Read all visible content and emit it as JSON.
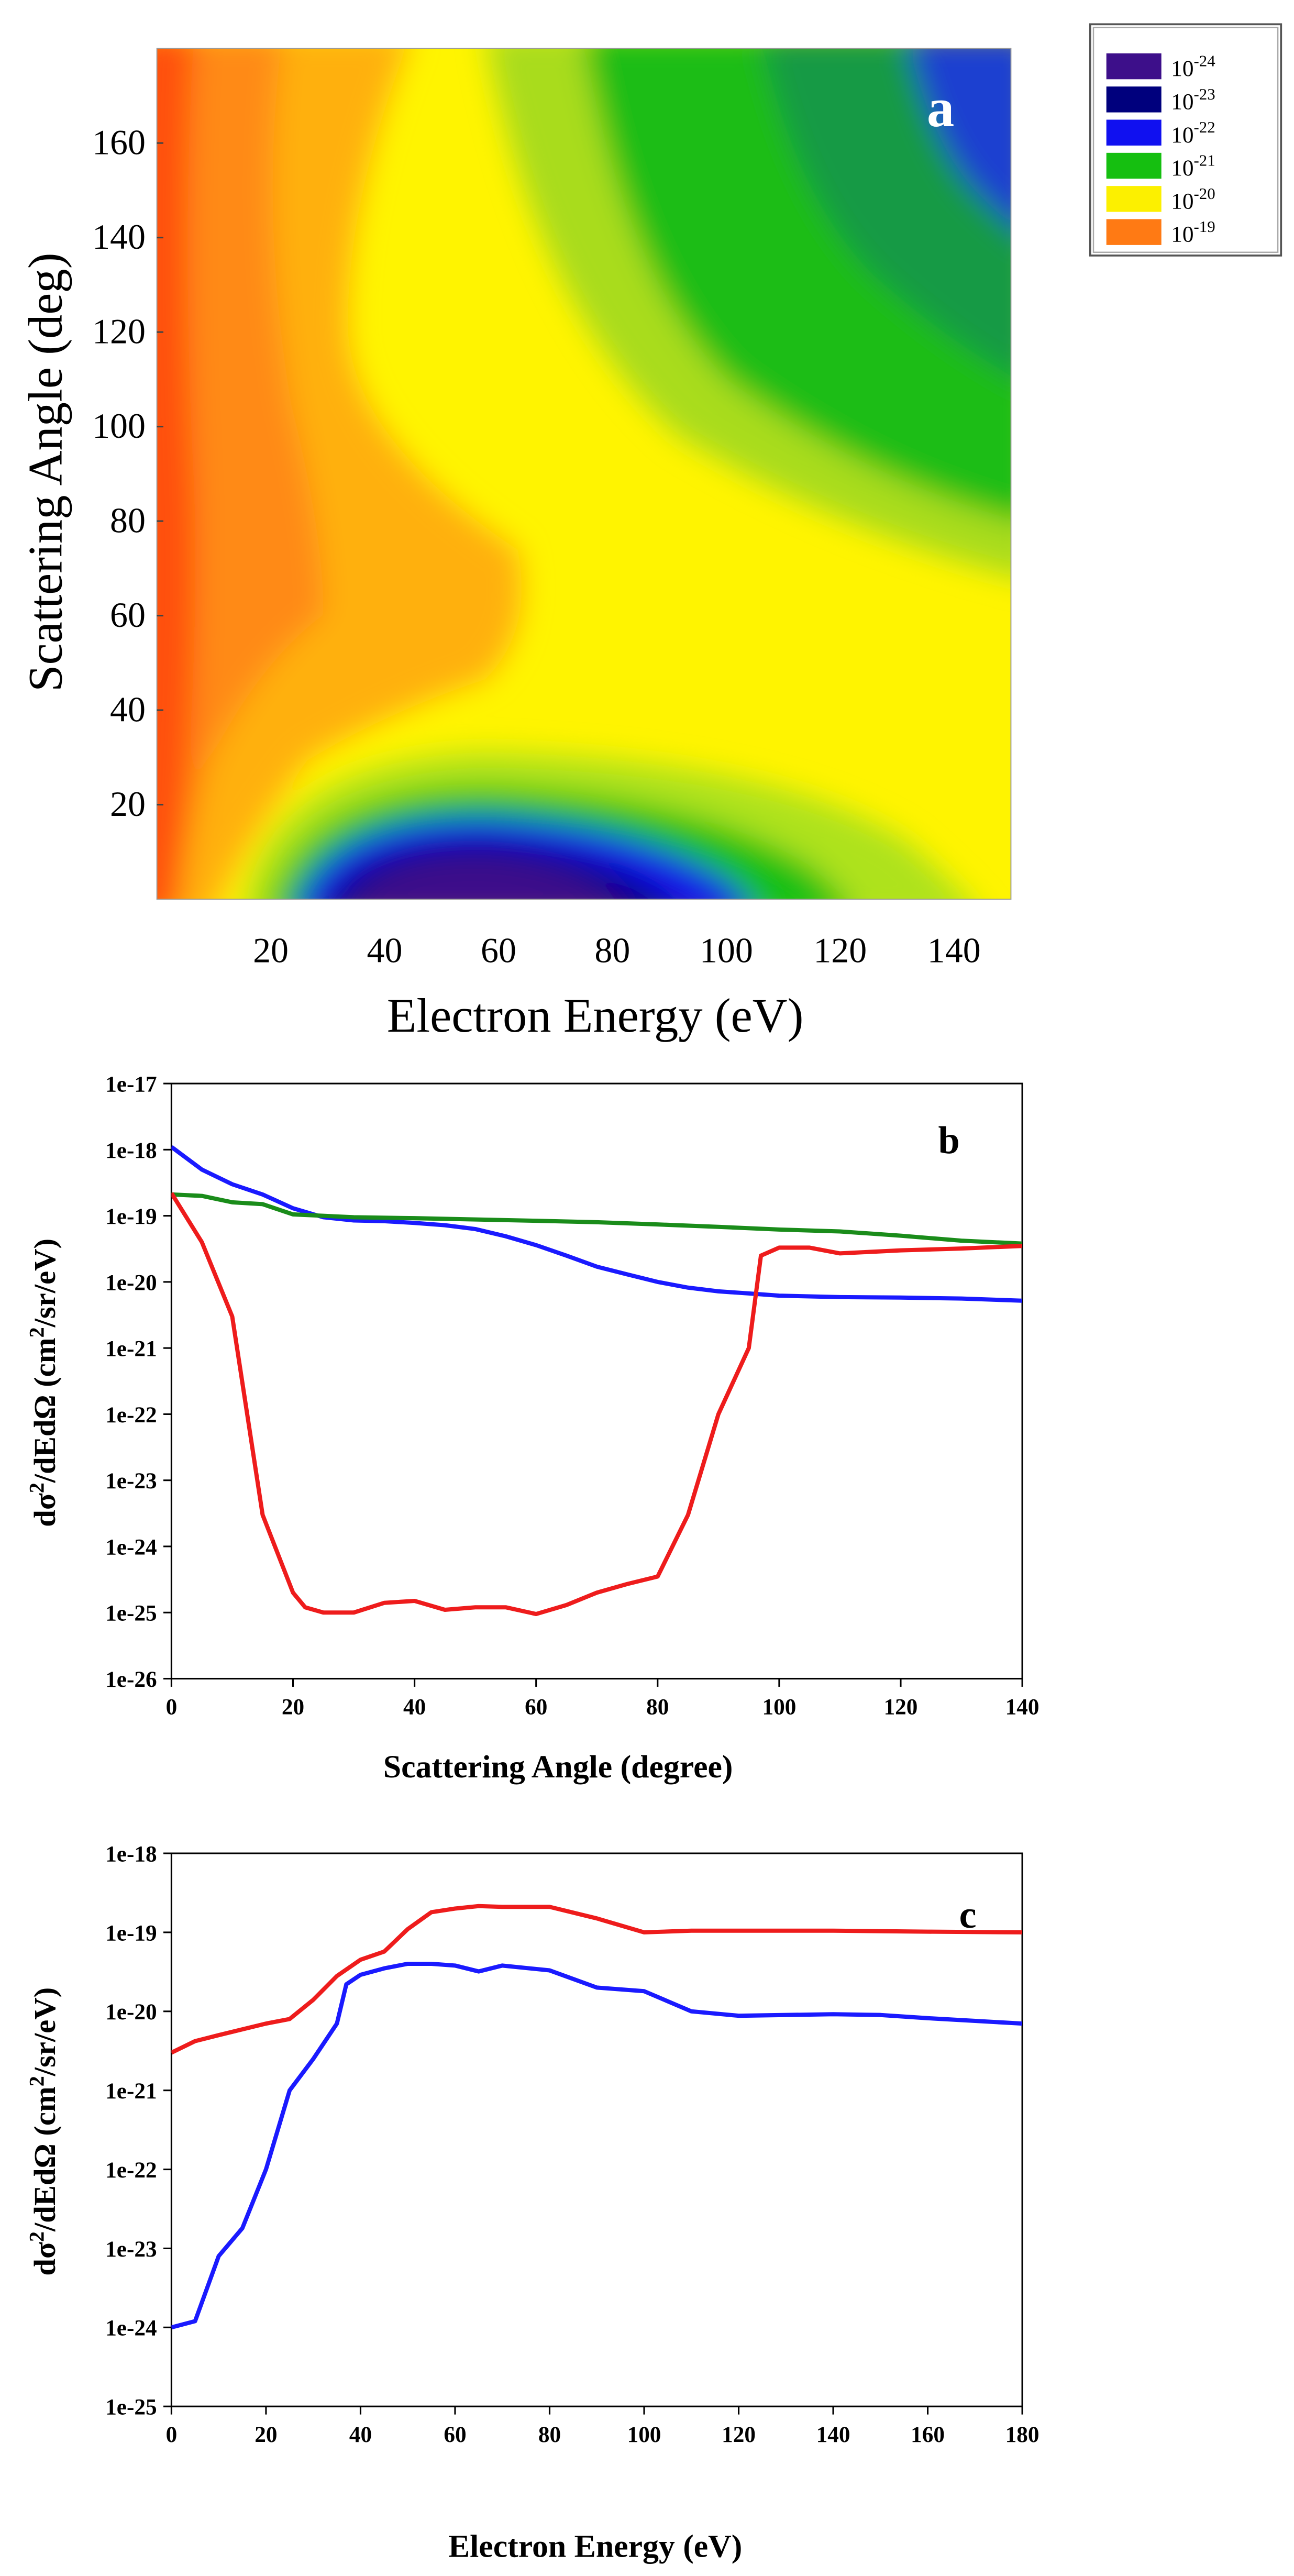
{
  "chart_data": [
    {
      "type": "heatmap",
      "panel_label": "a",
      "xlabel": "Electron Energy (eV)",
      "ylabel": "Scattering Angle (deg)",
      "xlim": [
        0,
        150
      ],
      "ylim": [
        0,
        180
      ],
      "xticks": [
        "20",
        "40",
        "60",
        "80",
        "100",
        "120",
        "140"
      ],
      "xtick_values": [
        20,
        40,
        60,
        80,
        100,
        120,
        140
      ],
      "yticks": [
        "20",
        "40",
        "60",
        "80",
        "100",
        "120",
        "140",
        "160"
      ],
      "ytick_values": [
        20,
        40,
        60,
        80,
        100,
        120,
        140,
        160
      ],
      "legend": [
        {
          "base": "10",
          "exp": "-24",
          "color": "#3d0f8a"
        },
        {
          "base": "10",
          "exp": "-23",
          "color": "#00007d"
        },
        {
          "base": "10",
          "exp": "-22",
          "color": "#1010f0"
        },
        {
          "base": "10",
          "exp": "-21",
          "color": "#15bf10"
        },
        {
          "base": "10",
          "exp": "-20",
          "color": "#fcf000"
        },
        {
          "base": "10",
          "exp": "-19",
          "color": "#ff7a14"
        }
      ],
      "legend_placement": "outside top-right"
    },
    {
      "type": "line",
      "panel_label": "b",
      "xlabel": "Scattering Angle (degree)",
      "ylabel": "dσ²/dEdΩ (cm²/sr/eV)",
      "ylabel_parts": {
        "pre": "dσ",
        "sup1": "2",
        "mid": "/dEdΩ (cm",
        "sup2": "2",
        "post": "/sr/eV)"
      },
      "xlim": [
        0,
        140
      ],
      "ylim": [
        1e-26,
        1e-17
      ],
      "yscale": "log",
      "xticks": [
        "0",
        "20",
        "40",
        "60",
        "80",
        "100",
        "120",
        "140"
      ],
      "xtick_values": [
        0,
        20,
        40,
        60,
        80,
        100,
        120,
        140
      ],
      "yticks": [
        "1e-26",
        "1e-25",
        "1e-24",
        "1e-23",
        "1e-22",
        "1e-21",
        "1e-20",
        "1e-19",
        "1e-18",
        "1e-17"
      ],
      "ytick_exps": [
        -26,
        -25,
        -24,
        -23,
        -22,
        -21,
        -20,
        -19,
        -18,
        -17
      ],
      "series": [
        {
          "color": "#1a1aff",
          "x": [
            0,
            5,
            10,
            15,
            20,
            25,
            30,
            35,
            40,
            45,
            50,
            55,
            60,
            65,
            70,
            75,
            80,
            85,
            90,
            95,
            100,
            110,
            120,
            130,
            140
          ],
          "y": [
            1.1e-18,
            5e-19,
            3e-19,
            2.1e-19,
            1.3e-19,
            9.5e-20,
            8.5e-20,
            8.3e-20,
            7.8e-20,
            7.2e-20,
            6.3e-20,
            4.9e-20,
            3.6e-20,
            2.5e-20,
            1.7e-20,
            1.3e-20,
            1e-20,
            8.2e-21,
            7.2e-21,
            6.7e-21,
            6.2e-21,
            5.9e-21,
            5.8e-21,
            5.6e-21,
            5.2e-21
          ]
        },
        {
          "color": "#1a8c1a",
          "x": [
            0,
            5,
            10,
            15,
            20,
            25,
            30,
            40,
            50,
            60,
            70,
            80,
            90,
            100,
            110,
            120,
            130,
            140
          ],
          "y": [
            2.1e-19,
            2e-19,
            1.6e-19,
            1.5e-19,
            1.05e-19,
            1e-19,
            9.5e-20,
            9.2e-20,
            8.8e-20,
            8.4e-20,
            8e-20,
            7.4e-20,
            6.8e-20,
            6.2e-20,
            5.8e-20,
            5e-20,
            4.2e-20,
            3.8e-20
          ]
        },
        {
          "color": "#ee1c1c",
          "x": [
            0,
            5,
            10,
            15,
            20,
            22,
            25,
            30,
            35,
            40,
            45,
            50,
            55,
            60,
            65,
            70,
            75,
            80,
            85,
            90,
            95,
            97,
            100,
            105,
            110,
            120,
            130,
            140
          ],
          "y": [
            2.2e-19,
            4e-20,
            3e-21,
            3e-24,
            2e-25,
            1.2e-25,
            1e-25,
            1e-25,
            1.4e-25,
            1.5e-25,
            1.1e-25,
            1.2e-25,
            1.2e-25,
            9.5e-26,
            1.3e-25,
            2e-25,
            2.7e-25,
            3.5e-25,
            3e-24,
            1e-22,
            1e-21,
            2.5e-20,
            3.3e-20,
            3.3e-20,
            2.7e-20,
            3e-20,
            3.2e-20,
            3.5e-20
          ]
        }
      ]
    },
    {
      "type": "line",
      "panel_label": "c",
      "xlabel": "Electron Energy (eV)",
      "ylabel": "dσ²/dEdΩ (cm²/sr/eV)",
      "ylabel_parts": {
        "pre": "dσ",
        "sup1": "2",
        "mid": "/dEdΩ (cm",
        "sup2": "2",
        "post": "/sr/eV)"
      },
      "xlim": [
        0,
        180
      ],
      "ylim": [
        1e-25,
        1e-18
      ],
      "yscale": "log",
      "xticks": [
        "0",
        "20",
        "40",
        "60",
        "80",
        "100",
        "120",
        "140",
        "160",
        "180"
      ],
      "xtick_values": [
        0,
        20,
        40,
        60,
        80,
        100,
        120,
        140,
        160,
        180
      ],
      "yticks": [
        "1e-25",
        "1e-24",
        "1e-23",
        "1e-22",
        "1e-21",
        "1e-20",
        "1e-19",
        "1e-18"
      ],
      "ytick_exps": [
        -25,
        -24,
        -23,
        -22,
        -21,
        -20,
        -19,
        -18
      ],
      "series": [
        {
          "color": "#ee1c1c",
          "x": [
            0,
            5,
            10,
            20,
            25,
            30,
            35,
            40,
            45,
            50,
            55,
            60,
            65,
            70,
            75,
            80,
            90,
            100,
            110,
            120,
            140,
            160,
            180
          ],
          "y": [
            3e-21,
            4.2e-21,
            5e-21,
            7e-21,
            8e-21,
            1.4e-20,
            2.8e-20,
            4.5e-20,
            5.7e-20,
            1.1e-19,
            1.8e-19,
            2e-19,
            2.15e-19,
            2.1e-19,
            2.1e-19,
            2.1e-19,
            1.5e-19,
            1e-19,
            1.05e-19,
            1.05e-19,
            1.05e-19,
            1.02e-19,
            1e-19
          ]
        },
        {
          "color": "#1a1aff",
          "x": [
            0,
            5,
            10,
            15,
            20,
            25,
            30,
            35,
            37,
            40,
            45,
            50,
            55,
            60,
            65,
            70,
            80,
            90,
            100,
            110,
            120,
            140,
            150,
            160,
            180
          ],
          "y": [
            1e-24,
            1.2e-24,
            8e-24,
            1.8e-23,
            1e-22,
            1e-21,
            2.5e-21,
            7e-21,
            2.2e-20,
            2.9e-20,
            3.5e-20,
            4e-20,
            4e-20,
            3.8e-20,
            3.2e-20,
            3.8e-20,
            3.3e-20,
            2e-20,
            1.8e-20,
            1e-20,
            8.8e-21,
            9.2e-21,
            9e-21,
            8.2e-21,
            7e-21
          ]
        }
      ]
    }
  ]
}
